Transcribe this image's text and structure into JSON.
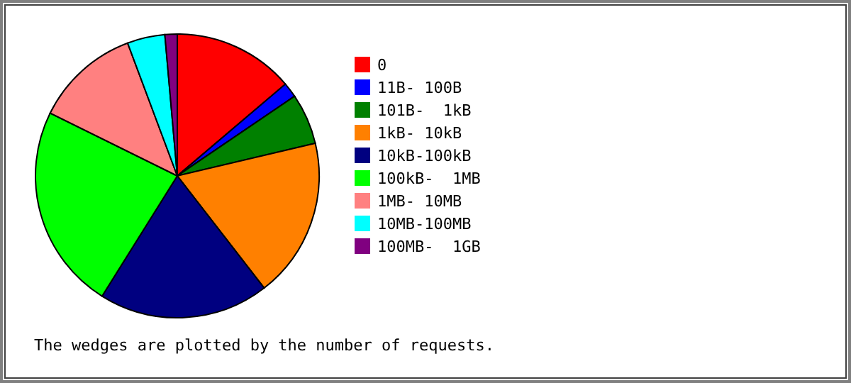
{
  "chart_data": {
    "type": "pie",
    "categories": [
      "0",
      "11B- 100B",
      "101B-  1kB",
      "1kB- 10kB",
      "10kB-100kB",
      "100kB-  1MB",
      "1MB- 10MB",
      "10MB-100MB",
      "100MB-  1GB"
    ],
    "values": [
      13.8,
      1.7,
      5.8,
      18.2,
      19.4,
      23.4,
      12.0,
      4.3,
      1.4
    ],
    "colors": [
      "#ff0000",
      "#0000ff",
      "#008000",
      "#ff8000",
      "#000080",
      "#00ff00",
      "#ff8080",
      "#00ffff",
      "#800080"
    ],
    "legend": "right",
    "annotations": [
      "The wedges are plotted by the number of requests."
    ]
  }
}
